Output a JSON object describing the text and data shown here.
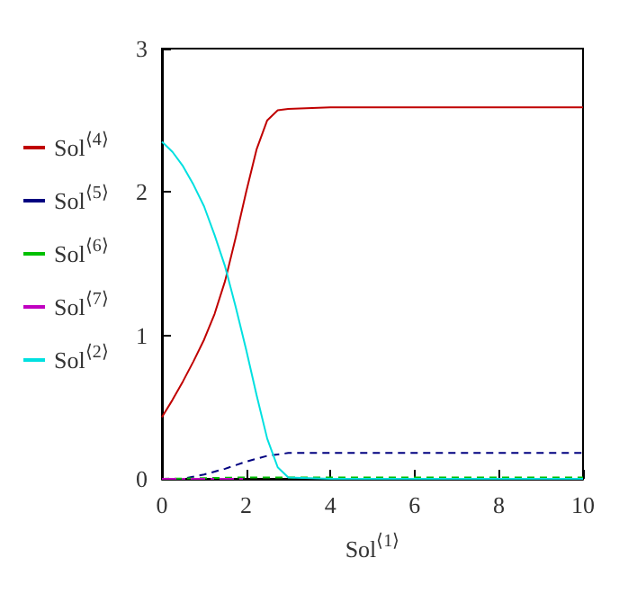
{
  "chart_data": {
    "type": "line",
    "xlabel": "Sol$^{⟨1⟩}$",
    "xlim": [
      0,
      10
    ],
    "xticks": [
      0,
      2,
      4,
      6,
      8,
      10
    ],
    "ylim": [
      0,
      3
    ],
    "yticks": [
      0,
      1,
      2,
      3
    ],
    "grid": false,
    "legend": "left",
    "marker": "none",
    "series": [
      {
        "name": "Sol$^{⟨4⟩}$",
        "color": "#c00000",
        "line_style": "solid",
        "x": [
          0,
          0.25,
          0.5,
          0.75,
          1,
          1.25,
          1.5,
          1.75,
          2,
          2.25,
          2.5,
          2.75,
          3,
          4,
          6,
          8,
          10
        ],
        "values": [
          0.43,
          0.55,
          0.68,
          0.82,
          0.97,
          1.15,
          1.38,
          1.68,
          2.0,
          2.3,
          2.5,
          2.57,
          2.58,
          2.59,
          2.59,
          2.59,
          2.59
        ]
      },
      {
        "name": "Sol$^{⟨5⟩}$",
        "color": "#000080",
        "line_style": "dashed",
        "x": [
          0,
          0.5,
          1,
          1.5,
          2,
          2.5,
          3,
          4,
          6,
          8,
          10
        ],
        "values": [
          0,
          0,
          0.03,
          0.07,
          0.12,
          0.16,
          0.18,
          0.18,
          0.18,
          0.18,
          0.18
        ]
      },
      {
        "name": "Sol$^{⟨6⟩}$",
        "color": "#00c000",
        "line_style": "dashed",
        "x": [
          0,
          2,
          4,
          6,
          8,
          10
        ],
        "values": [
          0,
          0.01,
          0.01,
          0.01,
          0.01,
          0.01
        ]
      },
      {
        "name": "Sol$^{⟨7⟩}$",
        "color": "#c000c0",
        "line_style": "dashdot",
        "x": [
          0,
          1,
          2
        ],
        "values": [
          0,
          0,
          0
        ]
      },
      {
        "name": "Sol$^{⟨2⟩}$",
        "color": "#00e0e0",
        "line_style": "solid",
        "x": [
          0,
          0.25,
          0.5,
          0.75,
          1,
          1.25,
          1.5,
          1.75,
          2,
          2.25,
          2.5,
          2.75,
          3,
          4,
          6,
          8,
          10
        ],
        "values": [
          2.35,
          2.28,
          2.18,
          2.05,
          1.9,
          1.7,
          1.48,
          1.2,
          0.9,
          0.58,
          0.28,
          0.08,
          0.01,
          0,
          0,
          0,
          0
        ]
      }
    ]
  }
}
